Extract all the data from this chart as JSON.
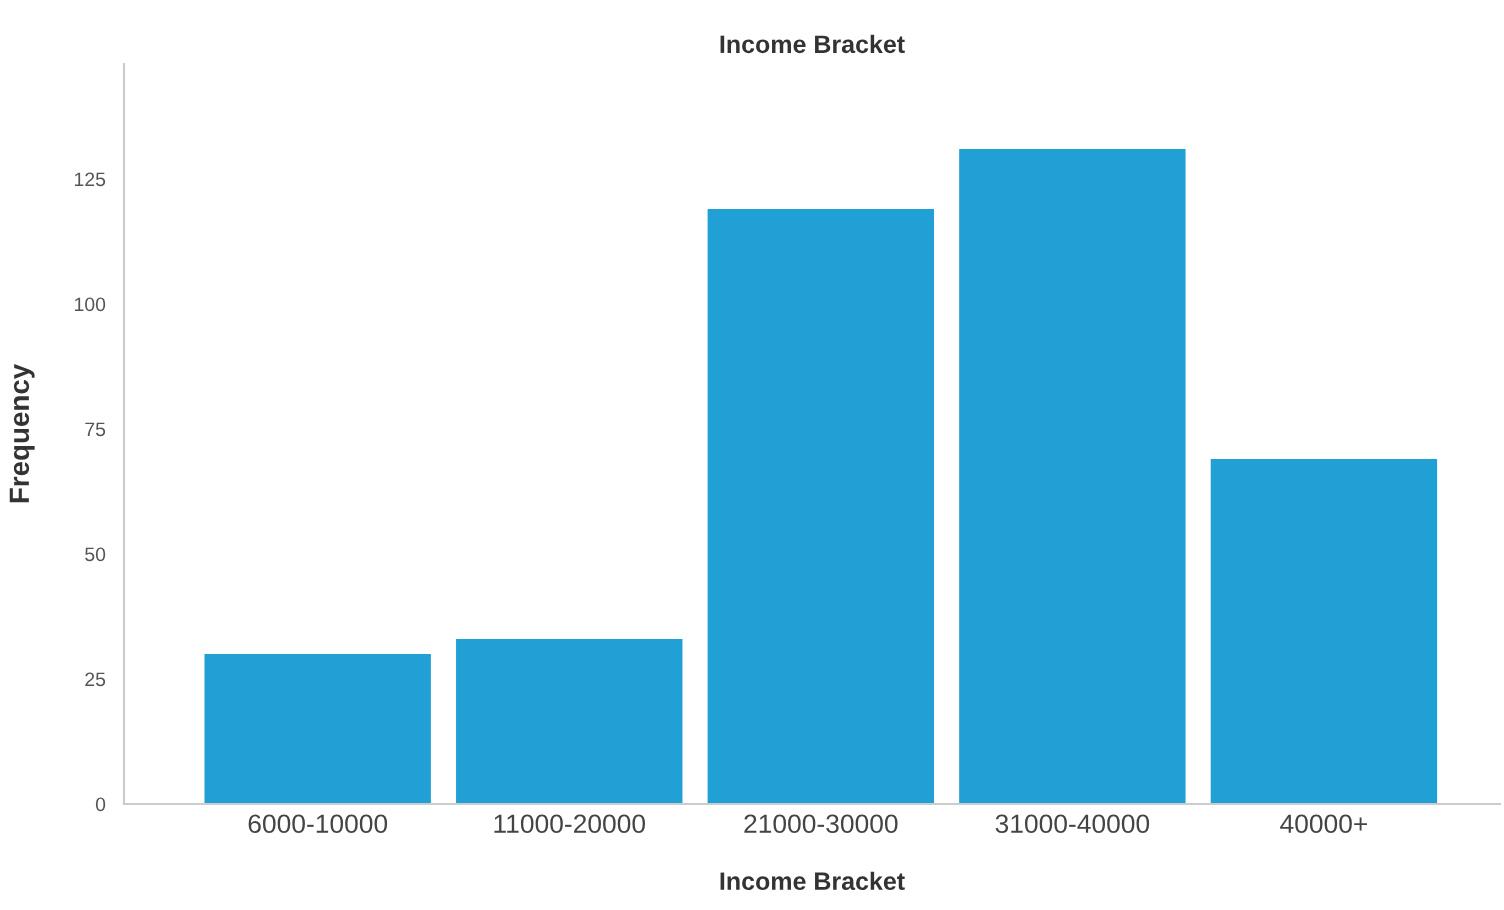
{
  "chart_data": {
    "type": "bar",
    "title": "Income Bracket",
    "xlabel": "Income Bracket",
    "ylabel": "Frequency",
    "categories": [
      "6000-10000",
      "11000-20000",
      "21000-30000",
      "31000-40000",
      "40000+"
    ],
    "values": [
      30,
      33,
      119,
      131,
      69
    ],
    "color": "#20a0d4",
    "ylim": [
      0,
      148
    ],
    "yticks": [
      0,
      25,
      50,
      75,
      100,
      125
    ],
    "grid": false,
    "legend": false
  }
}
